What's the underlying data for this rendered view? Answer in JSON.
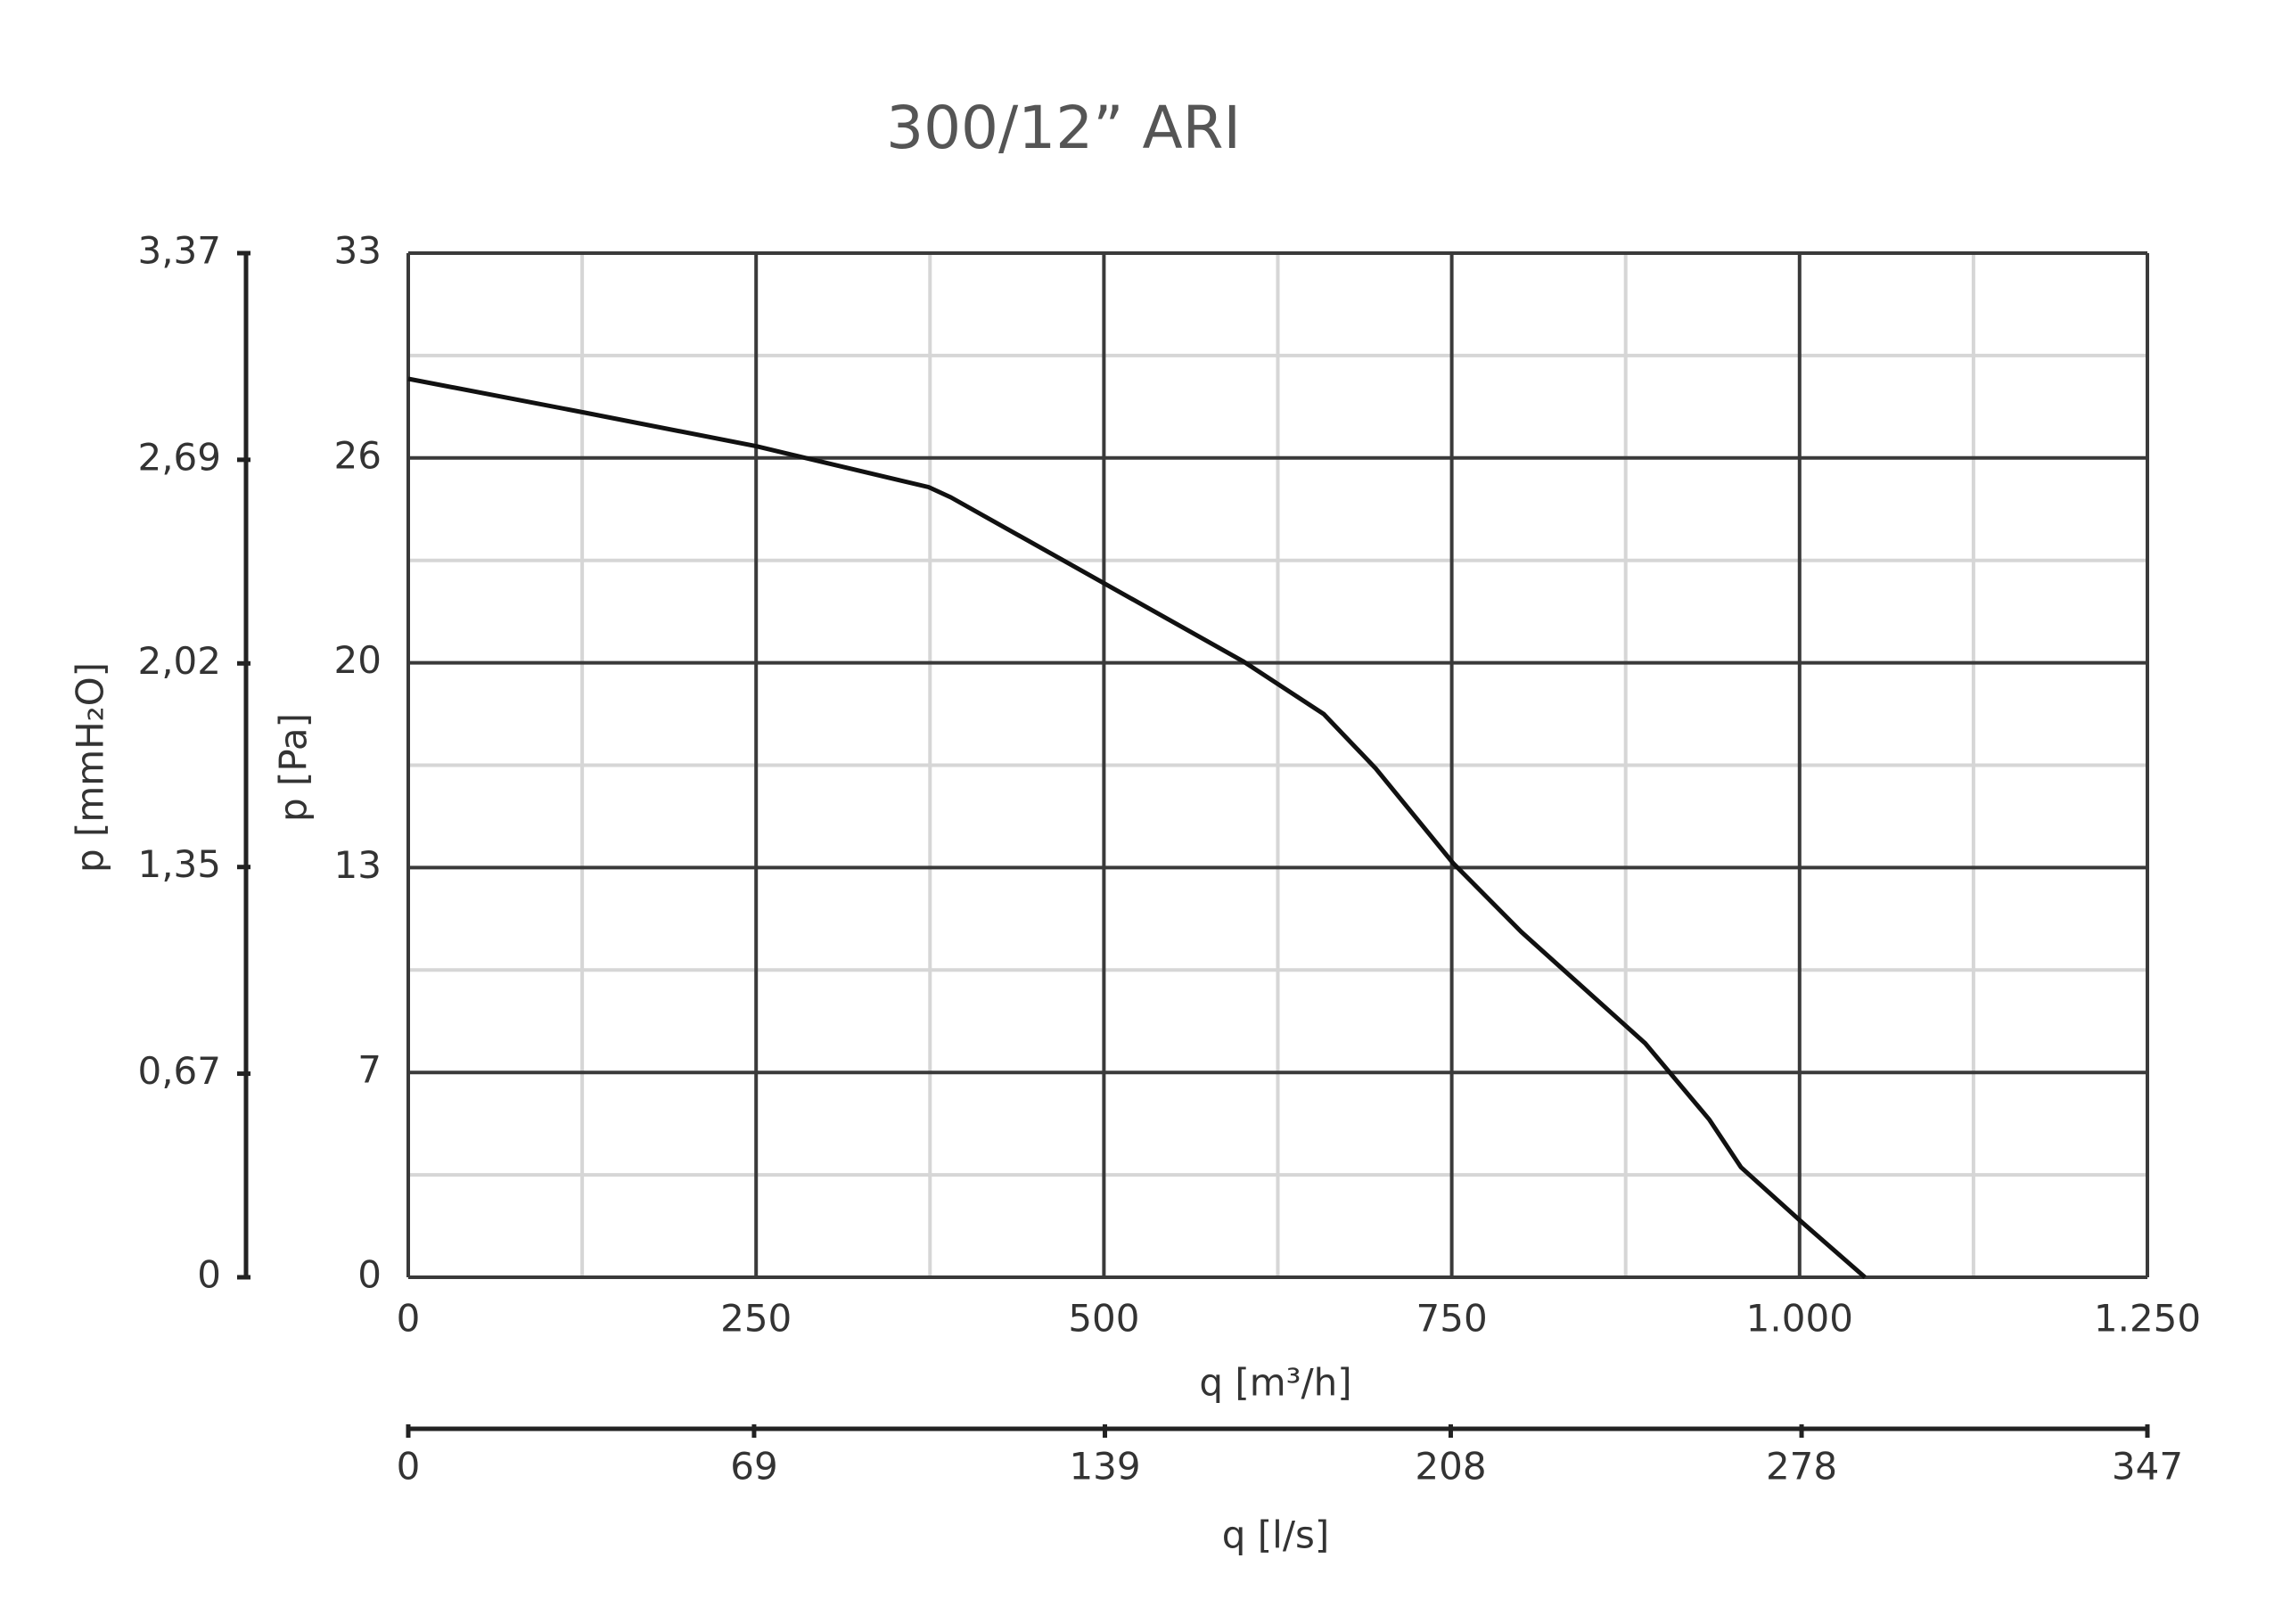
{
  "chart_data": {
    "type": "line",
    "title": "300/12” ARI",
    "xlabel": "q [m³/h]",
    "ylabel": "p [Pa]",
    "y2label": "p [mmH₂O]",
    "x2label": "q [l/s]",
    "x": [
      0,
      127,
      250,
      295,
      374,
      390,
      495,
      600,
      658,
      695,
      751,
      800,
      889,
      935,
      958,
      1000,
      1047
    ],
    "values": [
      28.95,
      27.86,
      26.78,
      26.3,
      25.46,
      25.13,
      22.49,
      19.85,
      18.15,
      16.41,
      13.34,
      11.13,
      7.54,
      5.09,
      3.54,
      1.84,
      0
    ],
    "color": "#111111",
    "xlim": [
      0,
      1250
    ],
    "xticks": [
      0,
      250,
      500,
      750,
      {
        "value": 1000,
        "label": "1.000"
      },
      {
        "value": 1250,
        "label": "1.250"
      }
    ],
    "ylim": [
      0,
      33
    ],
    "yticks": [
      0,
      {
        "value": 6.6,
        "label": "7"
      },
      {
        "value": 13.2,
        "label": "13"
      },
      {
        "value": 19.8,
        "label": "20"
      },
      {
        "value": 26.4,
        "label": "26"
      },
      33
    ],
    "y2lim": [
      0,
      3.37
    ],
    "y2ticks": [
      0,
      {
        "value": 0.67,
        "label": "0,67"
      },
      {
        "value": 1.35,
        "label": "1,35"
      },
      {
        "value": 2.02,
        "label": "2,02"
      },
      {
        "value": 2.69,
        "label": "2,69"
      },
      {
        "value": 3.37,
        "label": "3,37"
      }
    ],
    "x2lim": [
      0,
      347
    ],
    "x2ticks": [
      0,
      69,
      139,
      208,
      278,
      347
    ],
    "grid": true
  }
}
